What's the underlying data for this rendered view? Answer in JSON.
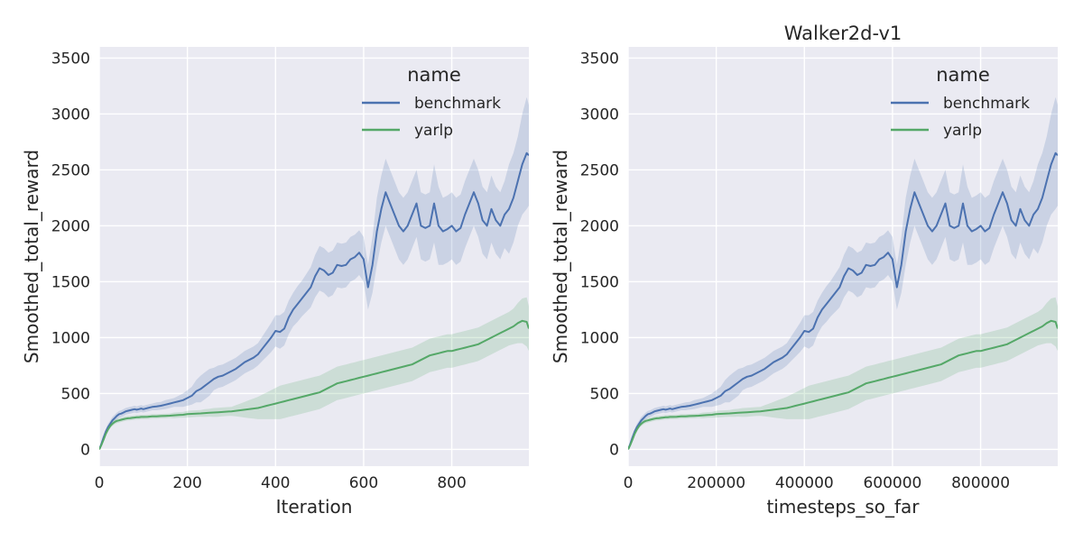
{
  "chart_data": [
    {
      "type": "line",
      "title": "",
      "xlabel": "Iteration",
      "ylabel": "Smoothed_total_reward",
      "xlim": [
        0,
        975
      ],
      "ylim": [
        -150,
        3600
      ],
      "xticks": [
        0,
        200,
        400,
        600,
        800
      ],
      "yticks": [
        0,
        500,
        1000,
        1500,
        2000,
        2500,
        3000,
        3500
      ],
      "grid": true,
      "legend": {
        "title": "name",
        "placement": "top-right"
      },
      "series": [
        {
          "name": "benchmark",
          "color": "#4c72b0",
          "x": [
            0,
            5,
            10,
            15,
            20,
            25,
            30,
            35,
            40,
            45,
            50,
            55,
            60,
            65,
            70,
            75,
            80,
            85,
            90,
            95,
            100,
            110,
            120,
            130,
            140,
            150,
            160,
            170,
            180,
            190,
            200,
            210,
            220,
            230,
            240,
            250,
            260,
            270,
            280,
            290,
            300,
            310,
            320,
            330,
            340,
            350,
            360,
            370,
            380,
            390,
            400,
            410,
            420,
            430,
            440,
            450,
            460,
            470,
            480,
            490,
            500,
            510,
            520,
            530,
            540,
            550,
            560,
            570,
            580,
            590,
            600,
            610,
            620,
            630,
            640,
            650,
            660,
            670,
            680,
            690,
            700,
            710,
            720,
            730,
            740,
            750,
            760,
            770,
            780,
            790,
            800,
            810,
            820,
            830,
            840,
            850,
            860,
            870,
            880,
            890,
            900,
            910,
            920,
            930,
            940,
            950,
            960,
            970,
            975
          ],
          "y": [
            0,
            50,
            110,
            160,
            200,
            230,
            260,
            280,
            300,
            315,
            320,
            330,
            340,
            345,
            350,
            355,
            360,
            355,
            360,
            365,
            360,
            370,
            380,
            385,
            390,
            400,
            410,
            420,
            430,
            440,
            460,
            480,
            520,
            540,
            570,
            600,
            630,
            650,
            660,
            680,
            700,
            720,
            750,
            780,
            800,
            820,
            850,
            900,
            950,
            1000,
            1060,
            1050,
            1080,
            1180,
            1250,
            1300,
            1350,
            1400,
            1450,
            1550,
            1620,
            1600,
            1560,
            1580,
            1650,
            1640,
            1650,
            1700,
            1720,
            1760,
            1700,
            1450,
            1650,
            1950,
            2150,
            2300,
            2200,
            2100,
            2000,
            1950,
            2000,
            2100,
            2200,
            2000,
            1980,
            2000,
            2200,
            2000,
            1950,
            1970,
            2000,
            1950,
            1980,
            2100,
            2200,
            2300,
            2200,
            2050,
            2000,
            2150,
            2050,
            2000,
            2100,
            2150,
            2250,
            2400,
            2550,
            2650,
            2630
          ],
          "ci_halfwidth": [
            0,
            10,
            20,
            25,
            30,
            30,
            30,
            30,
            30,
            30,
            30,
            30,
            30,
            30,
            30,
            30,
            30,
            30,
            30,
            30,
            30,
            30,
            30,
            35,
            35,
            40,
            40,
            40,
            50,
            60,
            70,
            80,
            100,
            120,
            120,
            120,
            100,
            100,
            100,
            100,
            100,
            100,
            100,
            100,
            100,
            100,
            100,
            110,
            120,
            130,
            140,
            150,
            150,
            150,
            150,
            160,
            160,
            170,
            180,
            190,
            200,
            200,
            200,
            200,
            200,
            200,
            200,
            200,
            200,
            200,
            200,
            200,
            250,
            300,
            300,
            300,
            300,
            300,
            300,
            300,
            300,
            300,
            300,
            300,
            300,
            300,
            350,
            350,
            300,
            300,
            300,
            300,
            300,
            300,
            300,
            300,
            300,
            300,
            300,
            300,
            300,
            300,
            300,
            400,
            400,
            400,
            450,
            500,
            450
          ]
        },
        {
          "name": "yarlp",
          "color": "#55a868",
          "x": [
            0,
            5,
            10,
            15,
            20,
            25,
            30,
            35,
            40,
            45,
            50,
            55,
            60,
            65,
            70,
            75,
            80,
            85,
            90,
            95,
            100,
            110,
            120,
            130,
            140,
            150,
            160,
            170,
            180,
            190,
            200,
            210,
            220,
            230,
            240,
            250,
            260,
            270,
            280,
            290,
            300,
            310,
            320,
            330,
            340,
            350,
            360,
            370,
            380,
            390,
            400,
            410,
            420,
            430,
            440,
            450,
            460,
            470,
            480,
            490,
            500,
            510,
            520,
            530,
            540,
            550,
            560,
            570,
            580,
            590,
            600,
            610,
            620,
            630,
            640,
            650,
            660,
            670,
            680,
            690,
            700,
            710,
            720,
            730,
            740,
            750,
            760,
            770,
            780,
            790,
            800,
            810,
            820,
            830,
            840,
            850,
            860,
            870,
            880,
            890,
            900,
            910,
            920,
            930,
            940,
            950,
            960,
            970,
            975
          ],
          "y": [
            0,
            40,
            90,
            140,
            180,
            210,
            230,
            245,
            255,
            260,
            265,
            270,
            275,
            278,
            280,
            282,
            285,
            287,
            288,
            290,
            290,
            292,
            295,
            296,
            298,
            300,
            302,
            305,
            308,
            310,
            315,
            318,
            320,
            322,
            325,
            328,
            330,
            332,
            335,
            338,
            340,
            345,
            350,
            355,
            360,
            365,
            370,
            380,
            390,
            400,
            410,
            420,
            430,
            440,
            450,
            460,
            470,
            480,
            490,
            500,
            510,
            530,
            550,
            570,
            590,
            600,
            610,
            620,
            630,
            640,
            650,
            660,
            670,
            680,
            690,
            700,
            710,
            720,
            730,
            740,
            750,
            760,
            780,
            800,
            820,
            840,
            850,
            860,
            870,
            880,
            880,
            890,
            900,
            910,
            920,
            930,
            940,
            960,
            980,
            1000,
            1020,
            1040,
            1060,
            1080,
            1100,
            1130,
            1150,
            1140,
            1080
          ],
          "ci_halfwidth": [
            0,
            5,
            10,
            15,
            20,
            20,
            20,
            20,
            20,
            20,
            20,
            20,
            20,
            20,
            20,
            20,
            20,
            20,
            20,
            20,
            20,
            20,
            20,
            20,
            20,
            20,
            20,
            25,
            25,
            25,
            30,
            30,
            30,
            30,
            35,
            35,
            40,
            40,
            40,
            40,
            40,
            50,
            60,
            70,
            80,
            90,
            100,
            110,
            120,
            130,
            140,
            150,
            150,
            150,
            150,
            150,
            150,
            150,
            150,
            150,
            150,
            150,
            150,
            150,
            150,
            150,
            150,
            150,
            150,
            150,
            150,
            150,
            150,
            150,
            150,
            150,
            150,
            150,
            150,
            150,
            150,
            150,
            150,
            150,
            150,
            150,
            150,
            150,
            150,
            150,
            150,
            150,
            150,
            150,
            150,
            150,
            150,
            150,
            150,
            150,
            150,
            150,
            150,
            150,
            160,
            180,
            200,
            220,
            200
          ]
        }
      ]
    },
    {
      "type": "line",
      "title": "Walker2d-v1",
      "xlabel": "timesteps_so_far",
      "ylabel": "Smoothed_total_reward",
      "xlim": [
        0,
        975000
      ],
      "ylim": [
        -150,
        3600
      ],
      "xticks": [
        0,
        200000,
        400000,
        600000,
        800000
      ],
      "yticks": [
        0,
        500,
        1000,
        1500,
        2000,
        2500,
        3000,
        3500
      ],
      "grid": true,
      "legend": {
        "title": "name",
        "placement": "top-right"
      },
      "x_scale_from_iteration": 1000,
      "series_same_as_left": true
    }
  ],
  "legend_items": [
    "benchmark",
    "yarlp"
  ],
  "legend_colors": [
    "#4c72b0",
    "#55a868"
  ]
}
